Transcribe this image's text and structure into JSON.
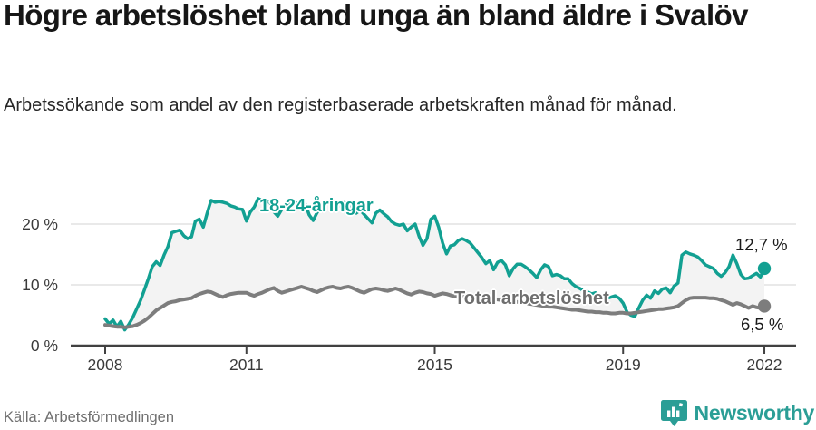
{
  "header": {
    "title": "Högre arbetslöshet bland unga än bland äldre i Svalöv",
    "subtitle": "Arbetssökande som andel av den registerbaserade arbetskraften månad för månad."
  },
  "footer": {
    "source": "Källa: Arbetsförmedlingen",
    "brand": "Newsworthy"
  },
  "colors": {
    "accent_teal": "#12a092",
    "total_gray": "#7d7d7d",
    "total_label_gray": "#6e6e6e",
    "end_label_black": "#1a1a1a",
    "gridline": "#e2e2e2",
    "axis": "#414141",
    "fill_between": "#f3f3f3",
    "brand_teal": "#2b9e96"
  },
  "chart_data": {
    "type": "line",
    "unit": "%",
    "x_start": "2008-01",
    "x_end": "2022-01",
    "frequency": "monthly",
    "ylim": [
      0,
      26
    ],
    "grid": "horizontal-only",
    "y_ticks": [
      {
        "value": 0,
        "label": "0 %"
      },
      {
        "value": 10,
        "label": "10 %"
      },
      {
        "value": 20,
        "label": "20 %"
      }
    ],
    "x_ticks": [
      {
        "year": 2008,
        "label": "2008"
      },
      {
        "year": 2011,
        "label": "2011"
      },
      {
        "year": 2015,
        "label": "2015"
      },
      {
        "year": 2019,
        "label": "2019"
      },
      {
        "year": 2022,
        "label": "2022"
      }
    ],
    "series": [
      {
        "name": "18-24-åringar",
        "color": "#12a092",
        "end_label": "12,7 %",
        "end_value": 12.7,
        "values": [
          4.4,
          3.6,
          4.2,
          3.1,
          4.0,
          2.6,
          3.5,
          4.6,
          6.0,
          7.4,
          9.2,
          11.0,
          13.0,
          13.8,
          13.2,
          14.9,
          16.3,
          18.6,
          18.8,
          19.0,
          18.1,
          17.6,
          17.9,
          20.5,
          20.8,
          19.5,
          21.8,
          23.9,
          23.6,
          23.7,
          23.6,
          23.4,
          23.0,
          22.8,
          22.5,
          22.4,
          20.5,
          22.0,
          22.8,
          24.2,
          23.9,
          23.7,
          23.6,
          22.0,
          21.3,
          22.4,
          23.2,
          23.5,
          23.8,
          23.3,
          22.8,
          23.3,
          21.5,
          20.6,
          21.9,
          22.5,
          23.1,
          23.6,
          23.4,
          23.2,
          22.9,
          23.5,
          23.0,
          22.4,
          21.8,
          22.3,
          21.6,
          20.9,
          20.2,
          21.8,
          22.3,
          21.7,
          21.2,
          20.4,
          20.0,
          19.8,
          20.0,
          18.9,
          19.5,
          20.0,
          18.0,
          16.5,
          17.6,
          20.8,
          21.3,
          19.5,
          16.9,
          15.1,
          16.4,
          16.6,
          17.3,
          17.6,
          17.3,
          16.9,
          16.1,
          15.3,
          14.5,
          13.5,
          14.0,
          12.5,
          13.7,
          14.0,
          13.3,
          11.5,
          12.7,
          13.4,
          13.4,
          13.0,
          12.5,
          11.9,
          11.2,
          12.5,
          13.3,
          13.0,
          11.5,
          11.7,
          11.5,
          11.0,
          11.0,
          10.2,
          9.7,
          9.4,
          9.0,
          8.8,
          8.5,
          8.7,
          8.3,
          8.0,
          7.8,
          8.0,
          8.2,
          7.8,
          7.0,
          5.5,
          5.0,
          4.8,
          6.2,
          7.5,
          8.3,
          7.8,
          9.0,
          8.6,
          9.3,
          9.5,
          8.7,
          9.8,
          10.3,
          14.9,
          15.4,
          15.1,
          14.9,
          14.6,
          14.0,
          13.3,
          13.0,
          12.7,
          11.9,
          11.4,
          12.0,
          13.0,
          14.9,
          13.5,
          11.7,
          11.0,
          11.1,
          11.5,
          11.9,
          11.3,
          12.7
        ]
      },
      {
        "name": "Total arbetslöshet",
        "color": "#7d7d7d",
        "end_label": "6,5 %",
        "end_value": 6.5,
        "values": [
          3.4,
          3.3,
          3.2,
          3.1,
          3.1,
          3.0,
          3.1,
          3.2,
          3.4,
          3.7,
          4.1,
          4.6,
          5.2,
          5.8,
          6.2,
          6.6,
          7.0,
          7.2,
          7.3,
          7.5,
          7.6,
          7.7,
          7.8,
          8.2,
          8.5,
          8.7,
          8.9,
          8.8,
          8.5,
          8.2,
          8.0,
          8.3,
          8.5,
          8.6,
          8.7,
          8.7,
          8.7,
          8.4,
          8.2,
          8.5,
          8.7,
          9.0,
          9.3,
          9.5,
          9.0,
          8.7,
          8.9,
          9.1,
          9.3,
          9.5,
          9.7,
          9.5,
          9.3,
          9.0,
          8.8,
          9.1,
          9.4,
          9.6,
          9.7,
          9.5,
          9.4,
          9.6,
          9.7,
          9.5,
          9.2,
          8.9,
          8.7,
          9.0,
          9.3,
          9.4,
          9.3,
          9.1,
          9.0,
          9.2,
          9.4,
          9.2,
          8.9,
          8.6,
          8.4,
          8.7,
          8.9,
          8.8,
          8.6,
          8.5,
          8.2,
          8.4,
          8.6,
          8.5,
          8.3,
          8.1,
          8.0,
          8.2,
          8.4,
          8.3,
          8.1,
          8.0,
          8.0,
          7.9,
          7.8,
          7.7,
          7.6,
          7.5,
          7.4,
          7.4,
          7.3,
          7.2,
          7.1,
          7.0,
          6.9,
          6.8,
          6.7,
          6.6,
          6.5,
          6.4,
          6.4,
          6.3,
          6.2,
          6.1,
          6.0,
          5.9,
          5.9,
          5.8,
          5.7,
          5.6,
          5.6,
          5.5,
          5.5,
          5.4,
          5.4,
          5.3,
          5.3,
          5.4,
          5.4,
          5.3,
          5.3,
          5.4,
          5.5,
          5.6,
          5.7,
          5.8,
          5.9,
          6.0,
          6.0,
          6.1,
          6.2,
          6.3,
          6.5,
          7.0,
          7.5,
          7.8,
          7.9,
          7.9,
          7.9,
          7.9,
          7.8,
          7.8,
          7.7,
          7.5,
          7.3,
          7.0,
          6.7,
          7.0,
          6.8,
          6.5,
          6.2,
          6.5,
          6.3,
          6.2,
          6.5
        ]
      }
    ]
  }
}
